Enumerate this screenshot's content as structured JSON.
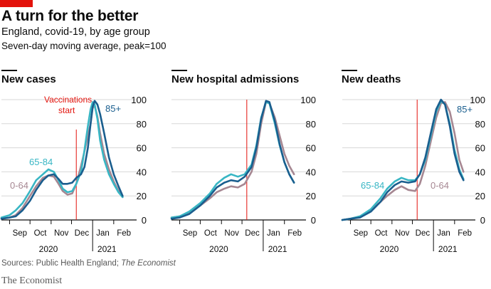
{
  "header": {
    "title": "A turn for the better",
    "subtitle": "England, covid-19, by age group",
    "description": "Seven-day moving average, peak=100"
  },
  "footer": {
    "source_prefix": "Sources: Public Health England; ",
    "source_italic": "The Economist",
    "brand": "The Economist"
  },
  "colors": {
    "brand_red": "#e3120b",
    "age_0_64": "#a68792",
    "age_65_84": "#38b6c4",
    "age_85_plus": "#1a5e8e",
    "vaccination_line": "#e3120b",
    "grid": "#d7d7d7"
  },
  "chart_data": [
    {
      "type": "line",
      "title": "New cases",
      "x_ticks": [
        "Sep",
        "Oct",
        "Nov",
        "Dec",
        "Jan",
        "Feb"
      ],
      "x_year_labels": [
        "2020",
        "2021"
      ],
      "ylim": [
        0,
        100
      ],
      "y_ticks": [
        0,
        20,
        40,
        60,
        80,
        100
      ],
      "grid": true,
      "annotations": [
        {
          "text": "Vaccinations start",
          "lines": [
            "Vaccinations",
            "start"
          ],
          "date": "2020-12-08"
        }
      ],
      "series_labels": [
        {
          "series": "0-64",
          "text": "0-64"
        },
        {
          "series": "65-84",
          "text": "65-84"
        },
        {
          "series": "85+",
          "text": "85+"
        }
      ],
      "series": [
        {
          "name": "0-64",
          "x": [
            "2020-08-20",
            "2020-09-01",
            "2020-09-10",
            "2020-09-20",
            "2020-10-01",
            "2020-10-10",
            "2020-10-20",
            "2020-10-28",
            "2020-11-05",
            "2020-11-12",
            "2020-11-18",
            "2020-11-25",
            "2020-12-02",
            "2020-12-08",
            "2020-12-15",
            "2020-12-20",
            "2020-12-25",
            "2020-12-29",
            "2021-01-01",
            "2021-01-04",
            "2021-01-08",
            "2021-01-12",
            "2021-01-18",
            "2021-01-25",
            "2021-02-01",
            "2021-02-08",
            "2021-02-14"
          ],
          "y": [
            1,
            2,
            4,
            10,
            20,
            28,
            35,
            37,
            36,
            30,
            24,
            21,
            22,
            30,
            45,
            57,
            70,
            80,
            93,
            95,
            86,
            72,
            55,
            42,
            32,
            24,
            19
          ]
        },
        {
          "name": "65-84",
          "x": [
            "2020-08-20",
            "2020-09-01",
            "2020-09-10",
            "2020-09-20",
            "2020-10-01",
            "2020-10-10",
            "2020-10-20",
            "2020-10-28",
            "2020-11-05",
            "2020-11-12",
            "2020-11-18",
            "2020-11-25",
            "2020-12-02",
            "2020-12-08",
            "2020-12-15",
            "2020-12-20",
            "2020-12-25",
            "2020-12-29",
            "2021-01-01",
            "2021-01-04",
            "2021-01-08",
            "2021-01-12",
            "2021-01-18",
            "2021-01-25",
            "2021-02-01",
            "2021-02-08",
            "2021-02-14"
          ],
          "y": [
            2,
            4,
            8,
            14,
            24,
            33,
            38,
            42,
            40,
            33,
            26,
            23,
            24,
            30,
            40,
            58,
            78,
            92,
            98,
            96,
            84,
            66,
            50,
            38,
            30,
            23,
            19
          ]
        },
        {
          "name": "85+",
          "x": [
            "2020-08-20",
            "2020-09-01",
            "2020-09-10",
            "2020-09-20",
            "2020-10-01",
            "2020-10-10",
            "2020-10-20",
            "2020-10-28",
            "2020-11-05",
            "2020-11-12",
            "2020-11-18",
            "2020-11-25",
            "2020-12-02",
            "2020-12-08",
            "2020-12-15",
            "2020-12-20",
            "2020-12-25",
            "2020-12-29",
            "2021-01-01",
            "2021-01-04",
            "2021-01-08",
            "2021-01-12",
            "2021-01-18",
            "2021-01-25",
            "2021-02-01",
            "2021-02-08",
            "2021-02-14"
          ],
          "y": [
            1,
            2,
            3,
            8,
            16,
            25,
            33,
            37,
            38,
            34,
            30,
            30,
            31,
            35,
            38,
            44,
            60,
            80,
            94,
            99,
            96,
            88,
            72,
            52,
            38,
            28,
            20
          ]
        }
      ]
    },
    {
      "type": "line",
      "title": "New hospital admissions",
      "x_ticks": [
        "Sep",
        "Oct",
        "Nov",
        "Dec",
        "Jan",
        "Feb"
      ],
      "x_year_labels": [
        "2020",
        "2021"
      ],
      "ylim": [
        0,
        100
      ],
      "y_ticks": [
        0,
        20,
        40,
        60,
        80,
        100
      ],
      "grid": true,
      "annotations": [
        {
          "text": "",
          "lines": [],
          "date": "2020-12-08"
        }
      ],
      "series_labels": [],
      "series": [
        {
          "name": "0-64",
          "x": [
            "2020-08-20",
            "2020-09-01",
            "2020-09-15",
            "2020-10-01",
            "2020-10-15",
            "2020-10-25",
            "2020-11-05",
            "2020-11-15",
            "2020-11-25",
            "2020-12-05",
            "2020-12-15",
            "2020-12-22",
            "2020-12-29",
            "2021-01-05",
            "2021-01-10",
            "2021-01-18",
            "2021-01-25",
            "2021-02-01",
            "2021-02-08",
            "2021-02-15"
          ],
          "y": [
            2,
            3,
            6,
            12,
            18,
            23,
            26,
            28,
            27,
            30,
            40,
            55,
            80,
            98,
            97,
            85,
            70,
            55,
            45,
            38
          ]
        },
        {
          "name": "65-84",
          "x": [
            "2020-08-20",
            "2020-09-01",
            "2020-09-15",
            "2020-10-01",
            "2020-10-15",
            "2020-10-25",
            "2020-11-05",
            "2020-11-15",
            "2020-11-25",
            "2020-12-05",
            "2020-12-15",
            "2020-12-22",
            "2020-12-29",
            "2021-01-05",
            "2021-01-10",
            "2021-01-18",
            "2021-01-25",
            "2021-02-01",
            "2021-02-08",
            "2021-02-15"
          ],
          "y": [
            2,
            3,
            7,
            14,
            22,
            30,
            35,
            38,
            36,
            38,
            46,
            62,
            85,
            98,
            97,
            80,
            62,
            48,
            38,
            31
          ]
        },
        {
          "name": "85+",
          "x": [
            "2020-08-20",
            "2020-09-01",
            "2020-09-15",
            "2020-10-01",
            "2020-10-15",
            "2020-10-25",
            "2020-11-05",
            "2020-11-15",
            "2020-11-25",
            "2020-12-05",
            "2020-12-15",
            "2020-12-22",
            "2020-12-29",
            "2021-01-05",
            "2021-01-10",
            "2021-01-18",
            "2021-01-25",
            "2021-02-01",
            "2021-02-08",
            "2021-02-15"
          ],
          "y": [
            1,
            2,
            5,
            12,
            20,
            27,
            31,
            33,
            32,
            36,
            44,
            60,
            84,
            99,
            98,
            82,
            63,
            48,
            38,
            31
          ]
        }
      ]
    },
    {
      "type": "line",
      "title": "New deaths",
      "x_ticks": [
        "Sep",
        "Oct",
        "Nov",
        "Dec",
        "Jan",
        "Feb"
      ],
      "x_year_labels": [
        "2020",
        "2021"
      ],
      "ylim": [
        0,
        100
      ],
      "y_ticks": [
        0,
        20,
        40,
        60,
        80,
        100
      ],
      "grid": true,
      "annotations": [
        {
          "text": "",
          "lines": [],
          "date": "2020-12-08"
        }
      ],
      "series_labels": [
        {
          "series": "65-84",
          "text": "65-84"
        },
        {
          "series": "0-64",
          "text": "0-64"
        },
        {
          "series": "85+",
          "text": "85+"
        }
      ],
      "series": [
        {
          "name": "0-64",
          "x": [
            "2020-08-20",
            "2020-09-01",
            "2020-09-15",
            "2020-10-01",
            "2020-10-15",
            "2020-10-25",
            "2020-11-05",
            "2020-11-15",
            "2020-11-25",
            "2020-12-05",
            "2020-12-12",
            "2020-12-20",
            "2020-12-28",
            "2021-01-05",
            "2021-01-12",
            "2021-01-18",
            "2021-01-25",
            "2021-02-01",
            "2021-02-08",
            "2021-02-14"
          ],
          "y": [
            0,
            1,
            3,
            8,
            15,
            20,
            25,
            28,
            25,
            24,
            30,
            45,
            65,
            85,
            97,
            98,
            90,
            72,
            50,
            40
          ]
        },
        {
          "name": "65-84",
          "x": [
            "2020-08-20",
            "2020-09-01",
            "2020-09-15",
            "2020-10-01",
            "2020-10-15",
            "2020-10-25",
            "2020-11-05",
            "2020-11-15",
            "2020-11-25",
            "2020-12-05",
            "2020-12-12",
            "2020-12-20",
            "2020-12-28",
            "2021-01-05",
            "2021-01-12",
            "2021-01-18",
            "2021-01-25",
            "2021-02-01",
            "2021-02-08",
            "2021-02-14"
          ],
          "y": [
            0,
            1,
            3,
            9,
            18,
            26,
            32,
            35,
            33,
            33,
            38,
            50,
            70,
            90,
            99,
            96,
            80,
            58,
            42,
            34
          ]
        },
        {
          "name": "85+",
          "x": [
            "2020-08-20",
            "2020-09-01",
            "2020-09-15",
            "2020-10-01",
            "2020-10-15",
            "2020-10-25",
            "2020-11-05",
            "2020-11-15",
            "2020-11-25",
            "2020-12-05",
            "2020-12-12",
            "2020-12-20",
            "2020-12-28",
            "2021-01-05",
            "2021-01-12",
            "2021-01-18",
            "2021-01-25",
            "2021-02-01",
            "2021-02-08",
            "2021-02-14"
          ],
          "y": [
            0,
            1,
            2,
            7,
            15,
            23,
            29,
            32,
            31,
            32,
            38,
            52,
            72,
            92,
            100,
            96,
            78,
            55,
            40,
            33
          ]
        }
      ]
    }
  ]
}
